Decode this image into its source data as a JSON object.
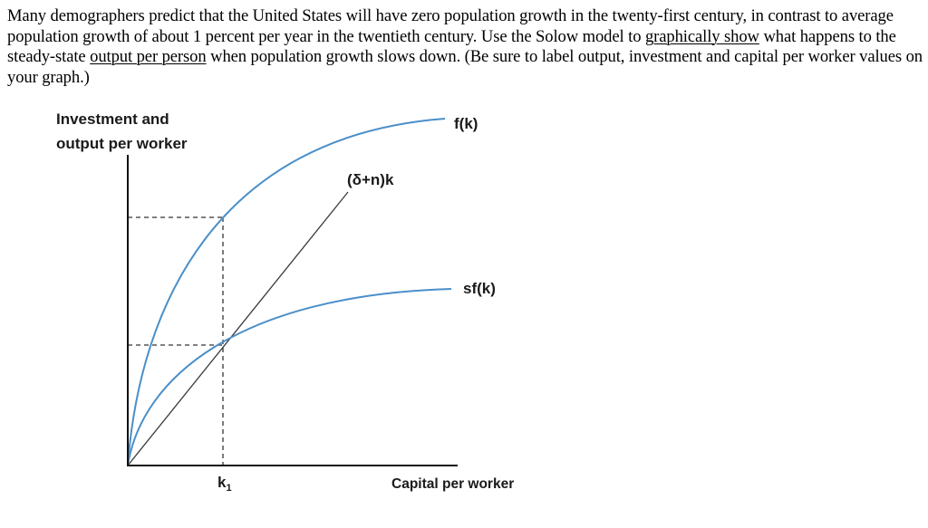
{
  "question": {
    "part1": "Many demographers predict that the United States will have zero population growth in the twenty-first century, in contrast to average population growth of about 1 percent per year in the twentieth century. Use the Solow model to ",
    "link1": "graphically show",
    "part2": " what happens to the steady-state ",
    "link2": "output per person",
    "part3": " when population growth slows down. (Be sure to label output, investment and capital per worker values on your graph.)"
  },
  "diagram": {
    "y_axis_label_line1": "Investment and",
    "y_axis_label_line2": "output per worker",
    "x_axis_label": "Capital per worker",
    "curve_f_label": "f(k)",
    "curve_sf_label": "sf(k)",
    "line_label": "(δ+n)k",
    "k_label": "k",
    "k_subscript": "1",
    "colors": {
      "curve": "#4a8fc9",
      "line": "#3a3a3a",
      "axis": "#111111",
      "dashed": "#333333"
    }
  }
}
